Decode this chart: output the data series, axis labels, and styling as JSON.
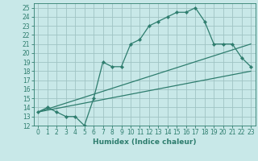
{
  "xlabel": "Humidex (Indice chaleur)",
  "bg_color": "#c8e8e8",
  "grid_color": "#a0c4c4",
  "line_color": "#2e7d6e",
  "xlim": [
    -0.5,
    23.5
  ],
  "ylim": [
    12,
    25.5
  ],
  "xticks": [
    0,
    1,
    2,
    3,
    4,
    5,
    6,
    7,
    8,
    9,
    10,
    11,
    12,
    13,
    14,
    15,
    16,
    17,
    18,
    19,
    20,
    21,
    22,
    23
  ],
  "yticks": [
    12,
    13,
    14,
    15,
    16,
    17,
    18,
    19,
    20,
    21,
    22,
    23,
    24,
    25
  ],
  "line1_x": [
    0,
    1,
    2,
    3,
    4,
    5,
    6,
    7,
    8,
    9,
    10,
    11,
    12,
    13,
    14,
    15,
    16,
    17,
    18,
    19,
    20,
    21,
    22,
    23
  ],
  "line1_y": [
    13.5,
    14.0,
    13.5,
    13.0,
    13.0,
    12.0,
    15.0,
    19.0,
    18.5,
    18.5,
    21.0,
    21.5,
    23.0,
    23.5,
    24.0,
    24.5,
    24.5,
    25.0,
    23.5,
    21.0,
    21.0,
    21.0,
    19.5,
    18.5
  ],
  "line2_x": [
    0,
    23
  ],
  "line2_y": [
    13.5,
    18.0
  ],
  "line3_x": [
    0,
    23
  ],
  "line3_y": [
    13.5,
    21.0
  ],
  "tick_font_size": 5.5,
  "xlabel_font_size": 6.5
}
